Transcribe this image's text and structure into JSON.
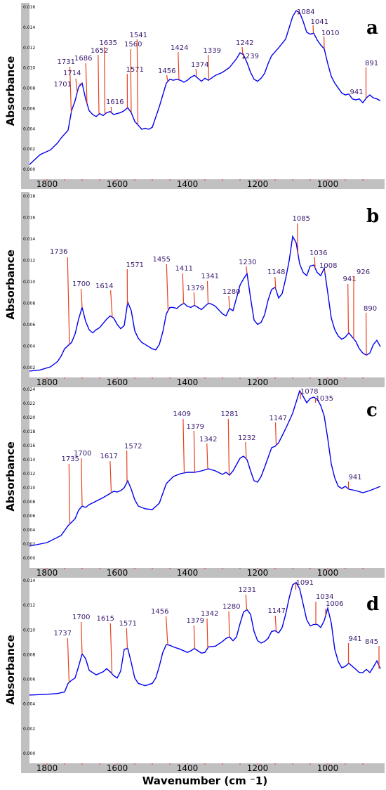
{
  "colors": {
    "curve": "#0000ee",
    "annotation": "#e8401c",
    "frame": "#c0c0c0",
    "label": "#3a1a70"
  },
  "chart_data": [
    {
      "type": "line",
      "panel": "a",
      "ylabel": "Absorbance",
      "xlabel": "",
      "xlim": [
        1850,
        850
      ],
      "ylim": [
        -0.002,
        0.016
      ],
      "x_ticks": [
        1800,
        1600,
        1400,
        1200,
        1000
      ],
      "y_ticks": [
        "0.016",
        "0.014",
        "0.012",
        "0.010",
        "0.008",
        "0.006",
        "0.004",
        "0.002",
        "0.000"
      ],
      "series": [
        {
          "x": [
            1850,
            1820,
            1790,
            1770,
            1760,
            1740,
            1730,
            1720,
            1710,
            1700,
            1690,
            1680,
            1670,
            1660,
            1650,
            1640,
            1630,
            1620,
            1610,
            1600,
            1590,
            1580,
            1570,
            1560,
            1550,
            1540,
            1530,
            1520,
            1510,
            1500,
            1480,
            1460,
            1450,
            1440,
            1430,
            1420,
            1410,
            1400,
            1390,
            1380,
            1370,
            1360,
            1350,
            1340,
            1320,
            1300,
            1280,
            1260,
            1250,
            1240,
            1230,
            1220,
            1210,
            1200,
            1190,
            1180,
            1170,
            1160,
            1150,
            1140,
            1120,
            1100,
            1090,
            1080,
            1070,
            1060,
            1050,
            1040,
            1030,
            1020,
            1010,
            1000,
            990,
            980,
            970,
            960,
            950,
            940,
            930,
            920,
            910,
            900,
            890,
            880,
            870,
            860,
            850
          ],
          "y": [
            -0.0005,
            0.0005,
            0.001,
            0.0017,
            0.0022,
            0.003,
            0.005,
            0.006,
            0.0074,
            0.0078,
            0.0062,
            0.005,
            0.0046,
            0.0044,
            0.0047,
            0.0045,
            0.0048,
            0.0049,
            0.0046,
            0.0047,
            0.0048,
            0.005,
            0.0053,
            0.0048,
            0.0039,
            0.0035,
            0.0031,
            0.0032,
            0.0031,
            0.0033,
            0.0054,
            0.0078,
            0.0082,
            0.0081,
            0.0082,
            0.0081,
            0.0079,
            0.0081,
            0.0084,
            0.0086,
            0.0083,
            0.008,
            0.0083,
            0.0081,
            0.0086,
            0.0089,
            0.0094,
            0.0103,
            0.0109,
            0.0107,
            0.0099,
            0.0089,
            0.0082,
            0.008,
            0.0083,
            0.0088,
            0.0098,
            0.0106,
            0.011,
            0.0114,
            0.0123,
            0.0146,
            0.0152,
            0.015,
            0.0141,
            0.013,
            0.0128,
            0.0129,
            0.0122,
            0.0117,
            0.0113,
            0.0098,
            0.0085,
            0.0078,
            0.0073,
            0.0068,
            0.0066,
            0.0067,
            0.0062,
            0.0061,
            0.0062,
            0.0058,
            0.0063,
            0.0066,
            0.0063,
            0.0062,
            0.006
          ]
        }
      ],
      "annotations": [
        {
          "label": "1731",
          "x": 1731
        },
        {
          "label": "1714",
          "x": 1714
        },
        {
          "label": "1686",
          "x": 1686
        },
        {
          "label": "1701",
          "x": 1701
        },
        {
          "label": "1652",
          "x": 1652
        },
        {
          "label": "1635",
          "x": 1635
        },
        {
          "label": "1616",
          "x": 1616
        },
        {
          "label": "1571",
          "x": 1571
        },
        {
          "label": "1560",
          "x": 1560
        },
        {
          "label": "1541",
          "x": 1541
        },
        {
          "label": "1456",
          "x": 1456
        },
        {
          "label": "1424",
          "x": 1424
        },
        {
          "label": "1374",
          "x": 1374
        },
        {
          "label": "1339",
          "x": 1339
        },
        {
          "label": "1242",
          "x": 1242
        },
        {
          "label": "1239",
          "x": 1239
        },
        {
          "label": "1084",
          "x": 1084
        },
        {
          "label": "1041",
          "x": 1041
        },
        {
          "label": "1010",
          "x": 1010
        },
        {
          "label": "891",
          "x": 891
        },
        {
          "label": "941",
          "x": 941
        }
      ]
    },
    {
      "type": "line",
      "panel": "b",
      "ylabel": "Absorbance",
      "xlabel": "",
      "xlim": [
        1850,
        850
      ],
      "ylim": [
        0.0005,
        0.018
      ],
      "x_ticks": [
        1800,
        1600,
        1400,
        1200,
        1000
      ],
      "y_ticks": [
        "0.018",
        "0.016",
        "0.014",
        "0.012",
        "0.010",
        "0.008",
        "0.006",
        "0.004",
        "0.002"
      ],
      "series": [
        {
          "x": [
            1850,
            1820,
            1790,
            1770,
            1760,
            1750,
            1740,
            1730,
            1720,
            1710,
            1700,
            1690,
            1680,
            1670,
            1660,
            1650,
            1640,
            1630,
            1620,
            1610,
            1600,
            1590,
            1580,
            1570,
            1560,
            1550,
            1540,
            1530,
            1520,
            1500,
            1490,
            1480,
            1470,
            1460,
            1450,
            1440,
            1430,
            1420,
            1410,
            1400,
            1390,
            1380,
            1370,
            1360,
            1350,
            1340,
            1330,
            1320,
            1300,
            1290,
            1280,
            1270,
            1260,
            1250,
            1240,
            1230,
            1220,
            1210,
            1200,
            1190,
            1180,
            1170,
            1160,
            1150,
            1140,
            1130,
            1120,
            1110,
            1100,
            1090,
            1080,
            1070,
            1060,
            1050,
            1040,
            1030,
            1020,
            1010,
            1000,
            990,
            980,
            970,
            960,
            950,
            940,
            930,
            920,
            910,
            900,
            890,
            880,
            870,
            860,
            850
          ],
          "y": [
            0.0011,
            0.0012,
            0.0015,
            0.002,
            0.0025,
            0.0032,
            0.0035,
            0.0038,
            0.0046,
            0.006,
            0.0071,
            0.0058,
            0.005,
            0.0047,
            0.005,
            0.0052,
            0.0056,
            0.006,
            0.0063,
            0.0061,
            0.0055,
            0.0051,
            0.0054,
            0.0076,
            0.0068,
            0.0049,
            0.0042,
            0.0038,
            0.0036,
            0.0032,
            0.0031,
            0.0036,
            0.0048,
            0.0065,
            0.0071,
            0.0071,
            0.007,
            0.0073,
            0.0075,
            0.0072,
            0.0071,
            0.0073,
            0.0071,
            0.0069,
            0.0072,
            0.0075,
            0.0074,
            0.0072,
            0.0065,
            0.0063,
            0.007,
            0.0068,
            0.008,
            0.0092,
            0.0098,
            0.0103,
            0.008,
            0.0059,
            0.0055,
            0.0057,
            0.0064,
            0.0078,
            0.0088,
            0.009,
            0.008,
            0.0084,
            0.0098,
            0.0115,
            0.0138,
            0.0132,
            0.0112,
            0.0104,
            0.0101,
            0.011,
            0.0111,
            0.0104,
            0.0101,
            0.0108,
            0.0085,
            0.0061,
            0.005,
            0.0044,
            0.0041,
            0.0043,
            0.0047,
            0.0043,
            0.0039,
            0.0032,
            0.0028,
            0.0026,
            0.0028,
            0.0036,
            0.004,
            0.0034
          ]
        }
      ],
      "annotations": [
        {
          "label": "1736",
          "x": 1736
        },
        {
          "label": "1700",
          "x": 1700
        },
        {
          "label": "1614",
          "x": 1614
        },
        {
          "label": "1571",
          "x": 1571
        },
        {
          "label": "1455",
          "x": 1455
        },
        {
          "label": "1411",
          "x": 1411
        },
        {
          "label": "1379",
          "x": 1379
        },
        {
          "label": "1341",
          "x": 1341
        },
        {
          "label": "1280",
          "x": 1280
        },
        {
          "label": "1230",
          "x": 1230
        },
        {
          "label": "1148",
          "x": 1148
        },
        {
          "label": "1085",
          "x": 1085
        },
        {
          "label": "1036",
          "x": 1036
        },
        {
          "label": "1008",
          "x": 1008
        },
        {
          "label": "941",
          "x": 941
        },
        {
          "label": "926",
          "x": 926
        },
        {
          "label": "890",
          "x": 890
        }
      ]
    },
    {
      "type": "line",
      "panel": "c",
      "ylabel": "Absorbance",
      "xlabel": "",
      "xlim": [
        1850,
        850
      ],
      "ylim": [
        -0.002,
        0.024
      ],
      "x_ticks": [
        1800,
        1600,
        1400,
        1200,
        1000
      ],
      "y_ticks": [
        "0.024",
        "0.022",
        "0.020",
        "0.018",
        "0.016",
        "0.014",
        "0.012",
        "0.010",
        "0.008",
        "0.006",
        "0.004",
        "0.002",
        "0.000"
      ],
      "series": [
        {
          "x": [
            1850,
            1800,
            1760,
            1740,
            1730,
            1720,
            1710,
            1700,
            1690,
            1680,
            1660,
            1640,
            1620,
            1610,
            1600,
            1590,
            1580,
            1570,
            1560,
            1550,
            1540,
            1520,
            1500,
            1480,
            1460,
            1440,
            1420,
            1400,
            1380,
            1360,
            1340,
            1320,
            1300,
            1290,
            1280,
            1270,
            1260,
            1250,
            1240,
            1230,
            1220,
            1210,
            1200,
            1190,
            1180,
            1160,
            1150,
            1140,
            1130,
            1120,
            1100,
            1080,
            1070,
            1060,
            1050,
            1040,
            1030,
            1020,
            1010,
            1000,
            990,
            980,
            970,
            960,
            950,
            940,
            920,
            900,
            880,
            860,
            850
          ],
          "y": [
            0.0011,
            0.0016,
            0.0026,
            0.004,
            0.0045,
            0.005,
            0.0062,
            0.0068,
            0.0066,
            0.007,
            0.0075,
            0.008,
            0.0086,
            0.0089,
            0.0088,
            0.009,
            0.0094,
            0.0104,
            0.0092,
            0.0077,
            0.0068,
            0.0064,
            0.0063,
            0.0072,
            0.01,
            0.011,
            0.0114,
            0.0116,
            0.0116,
            0.0118,
            0.0121,
            0.0118,
            0.0113,
            0.0116,
            0.0112,
            0.0118,
            0.0127,
            0.0136,
            0.0139,
            0.0134,
            0.0118,
            0.0104,
            0.0102,
            0.011,
            0.0123,
            0.0151,
            0.0153,
            0.0158,
            0.0168,
            0.0178,
            0.02,
            0.0232,
            0.0224,
            0.0215,
            0.0221,
            0.0223,
            0.022,
            0.0211,
            0.0196,
            0.0164,
            0.0128,
            0.0108,
            0.0096,
            0.0093,
            0.0096,
            0.0092,
            0.009,
            0.0087,
            0.009,
            0.0094,
            0.0096
          ]
        }
      ],
      "annotations": [
        {
          "label": "1735",
          "x": 1735
        },
        {
          "label": "1700",
          "x": 1700
        },
        {
          "label": "1617",
          "x": 1617
        },
        {
          "label": "1572",
          "x": 1572
        },
        {
          "label": "1409",
          "x": 1409
        },
        {
          "label": "1379",
          "x": 1379
        },
        {
          "label": "1342",
          "x": 1342
        },
        {
          "label": "1281",
          "x": 1281
        },
        {
          "label": "1232",
          "x": 1232
        },
        {
          "label": "1147",
          "x": 1147
        },
        {
          "label": "1078",
          "x": 1078
        },
        {
          "label": "1035",
          "x": 1035
        },
        {
          "label": "941",
          "x": 941
        }
      ]
    },
    {
      "type": "line",
      "panel": "d",
      "ylabel": "Absorbance",
      "xlabel": "Wavenumber (cm ⁻1)",
      "xlim": [
        1850,
        850
      ],
      "ylim": [
        -0.0095,
        0.0146
      ],
      "x_ticks": [
        1800,
        1600,
        1400,
        1200,
        1000
      ],
      "y_ticks": [
        "0.014",
        "0.012",
        "0.010",
        "0.008",
        "0.006",
        "0.004",
        "0.002",
        "0.000"
      ],
      "series": [
        {
          "x": [
            1850,
            1800,
            1770,
            1750,
            1740,
            1730,
            1720,
            1710,
            1700,
            1690,
            1680,
            1660,
            1640,
            1630,
            1620,
            1610,
            1600,
            1590,
            1580,
            1570,
            1560,
            1550,
            1540,
            1520,
            1500,
            1490,
            1480,
            1470,
            1460,
            1450,
            1440,
            1420,
            1400,
            1390,
            1380,
            1370,
            1360,
            1350,
            1340,
            1320,
            1300,
            1290,
            1280,
            1270,
            1260,
            1250,
            1240,
            1230,
            1220,
            1210,
            1200,
            1190,
            1180,
            1170,
            1160,
            1150,
            1140,
            1130,
            1120,
            1110,
            1100,
            1090,
            1080,
            1070,
            1060,
            1050,
            1040,
            1030,
            1020,
            1010,
            1000,
            990,
            980,
            970,
            960,
            950,
            940,
            930,
            920,
            910,
            900,
            890,
            880,
            870,
            860,
            850
          ],
          "y": [
            -0.0007,
            -0.0006,
            -0.0005,
            -0.0003,
            0.0008,
            0.0012,
            0.0015,
            0.003,
            0.0046,
            0.004,
            0.0025,
            0.0019,
            0.0023,
            0.0027,
            0.0023,
            0.0018,
            0.0015,
            0.0024,
            0.0052,
            0.0053,
            0.0035,
            0.0015,
            0.0008,
            0.0005,
            0.0008,
            0.0015,
            0.003,
            0.0048,
            0.0058,
            0.0057,
            0.0055,
            0.0052,
            0.0048,
            0.005,
            0.0053,
            0.005,
            0.0047,
            0.0048,
            0.0055,
            0.0056,
            0.0062,
            0.0066,
            0.0068,
            0.0063,
            0.0068,
            0.0085,
            0.01,
            0.0103,
            0.0097,
            0.0075,
            0.0063,
            0.006,
            0.0062,
            0.0066,
            0.0075,
            0.0076,
            0.0073,
            0.008,
            0.0097,
            0.0118,
            0.0135,
            0.0138,
            0.013,
            0.011,
            0.009,
            0.0082,
            0.0084,
            0.0084,
            0.008,
            0.0089,
            0.0105,
            0.0086,
            0.0052,
            0.0036,
            0.0028,
            0.003,
            0.0034,
            0.003,
            0.0026,
            0.0022,
            0.0022,
            0.0026,
            0.0022,
            0.0029,
            0.0037,
            0.0027
          ]
        }
      ],
      "annotations": [
        {
          "label": "1737",
          "x": 1737
        },
        {
          "label": "1700",
          "x": 1700
        },
        {
          "label": "1615",
          "x": 1615
        },
        {
          "label": "1571",
          "x": 1571
        },
        {
          "label": "1456",
          "x": 1456
        },
        {
          "label": "1379",
          "x": 1379
        },
        {
          "label": "1342",
          "x": 1342
        },
        {
          "label": "1280",
          "x": 1280
        },
        {
          "label": "1231",
          "x": 1231
        },
        {
          "label": "1147",
          "x": 1147
        },
        {
          "label": "1091",
          "x": 1091
        },
        {
          "label": "1034",
          "x": 1034
        },
        {
          "label": "1006",
          "x": 1006
        },
        {
          "label": "941",
          "x": 941
        },
        {
          "label": "845",
          "x": 845
        }
      ]
    }
  ]
}
